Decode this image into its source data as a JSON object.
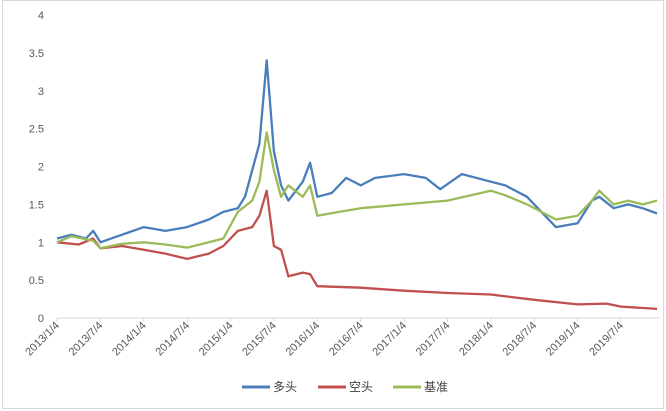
{
  "chart_data": {
    "type": "line",
    "title": "",
    "xlabel": "",
    "ylabel": "",
    "ylim": [
      0,
      4
    ],
    "yticks": [
      "0",
      "0.5",
      "1",
      "1.5",
      "2",
      "2.5",
      "3",
      "3.5",
      "4"
    ],
    "xticks": [
      "2013/1/4",
      "2013/7/4",
      "2014/1/4",
      "2014/7/4",
      "2015/1/4",
      "2015/7/4",
      "2016/1/4",
      "2016/7/4",
      "2017/1/4",
      "2017/7/4",
      "2018/1/4",
      "2018/7/4",
      "2019/1/4",
      "2019/7/4"
    ],
    "x_range": [
      "2013-01",
      "2019-12"
    ],
    "grid": false,
    "legend_position": "bottom",
    "series": [
      {
        "name": "多头",
        "color": "#4a7ebb",
        "points": [
          [
            "2013-01",
            1.05
          ],
          [
            "2013-03",
            1.1
          ],
          [
            "2013-05",
            1.05
          ],
          [
            "2013-06",
            1.15
          ],
          [
            "2013-07",
            1.0
          ],
          [
            "2013-10",
            1.1
          ],
          [
            "2014-01",
            1.2
          ],
          [
            "2014-04",
            1.15
          ],
          [
            "2014-07",
            1.2
          ],
          [
            "2014-10",
            1.3
          ],
          [
            "2014-12",
            1.4
          ],
          [
            "2015-02",
            1.45
          ],
          [
            "2015-03",
            1.6
          ],
          [
            "2015-04",
            1.95
          ],
          [
            "2015-05",
            2.3
          ],
          [
            "2015-06",
            3.4
          ],
          [
            "2015-07",
            2.2
          ],
          [
            "2015-08",
            1.75
          ],
          [
            "2015-09",
            1.55
          ],
          [
            "2015-11",
            1.8
          ],
          [
            "2015-12",
            2.05
          ],
          [
            "2016-01",
            1.6
          ],
          [
            "2016-03",
            1.65
          ],
          [
            "2016-05",
            1.85
          ],
          [
            "2016-07",
            1.75
          ],
          [
            "2016-09",
            1.85
          ],
          [
            "2017-01",
            1.9
          ],
          [
            "2017-04",
            1.85
          ],
          [
            "2017-06",
            1.7
          ],
          [
            "2017-09",
            1.9
          ],
          [
            "2018-01",
            1.8
          ],
          [
            "2018-03",
            1.75
          ],
          [
            "2018-06",
            1.6
          ],
          [
            "2018-08",
            1.4
          ],
          [
            "2018-10",
            1.2
          ],
          [
            "2019-01",
            1.25
          ],
          [
            "2019-03",
            1.55
          ],
          [
            "2019-04",
            1.6
          ],
          [
            "2019-06",
            1.45
          ],
          [
            "2019-08",
            1.5
          ],
          [
            "2019-10",
            1.45
          ],
          [
            "2019-12",
            1.38
          ]
        ]
      },
      {
        "name": "空头",
        "color": "#c0504d",
        "points": [
          [
            "2013-01",
            1.0
          ],
          [
            "2013-04",
            0.97
          ],
          [
            "2013-06",
            1.05
          ],
          [
            "2013-07",
            0.92
          ],
          [
            "2013-10",
            0.95
          ],
          [
            "2014-01",
            0.9
          ],
          [
            "2014-04",
            0.85
          ],
          [
            "2014-07",
            0.78
          ],
          [
            "2014-10",
            0.85
          ],
          [
            "2014-12",
            0.95
          ],
          [
            "2015-02",
            1.15
          ],
          [
            "2015-04",
            1.2
          ],
          [
            "2015-05",
            1.35
          ],
          [
            "2015-06",
            1.68
          ],
          [
            "2015-07",
            0.95
          ],
          [
            "2015-08",
            0.9
          ],
          [
            "2015-09",
            0.55
          ],
          [
            "2015-11",
            0.6
          ],
          [
            "2015-12",
            0.58
          ],
          [
            "2016-01",
            0.42
          ],
          [
            "2016-07",
            0.4
          ],
          [
            "2017-01",
            0.36
          ],
          [
            "2017-07",
            0.33
          ],
          [
            "2018-01",
            0.31
          ],
          [
            "2018-07",
            0.24
          ],
          [
            "2019-01",
            0.18
          ],
          [
            "2019-05",
            0.19
          ],
          [
            "2019-07",
            0.15
          ],
          [
            "2019-12",
            0.12
          ]
        ]
      },
      {
        "name": "基准",
        "color": "#9bbb59",
        "points": [
          [
            "2013-01",
            1.0
          ],
          [
            "2013-03",
            1.08
          ],
          [
            "2013-06",
            1.02
          ],
          [
            "2013-07",
            0.92
          ],
          [
            "2013-10",
            0.98
          ],
          [
            "2014-01",
            1.0
          ],
          [
            "2014-04",
            0.97
          ],
          [
            "2014-07",
            0.93
          ],
          [
            "2014-10",
            1.0
          ],
          [
            "2014-12",
            1.05
          ],
          [
            "2015-02",
            1.4
          ],
          [
            "2015-04",
            1.55
          ],
          [
            "2015-05",
            1.8
          ],
          [
            "2015-06",
            2.45
          ],
          [
            "2015-07",
            1.95
          ],
          [
            "2015-08",
            1.6
          ],
          [
            "2015-09",
            1.75
          ],
          [
            "2015-11",
            1.6
          ],
          [
            "2015-12",
            1.75
          ],
          [
            "2016-01",
            1.35
          ],
          [
            "2016-04",
            1.4
          ],
          [
            "2016-07",
            1.45
          ],
          [
            "2017-01",
            1.5
          ],
          [
            "2017-07",
            1.55
          ],
          [
            "2018-01",
            1.68
          ],
          [
            "2018-03",
            1.62
          ],
          [
            "2018-06",
            1.5
          ],
          [
            "2018-08",
            1.4
          ],
          [
            "2018-10",
            1.3
          ],
          [
            "2019-01",
            1.35
          ],
          [
            "2019-03",
            1.55
          ],
          [
            "2019-04",
            1.68
          ],
          [
            "2019-06",
            1.5
          ],
          [
            "2019-08",
            1.55
          ],
          [
            "2019-10",
            1.5
          ],
          [
            "2019-12",
            1.55
          ]
        ]
      }
    ]
  }
}
